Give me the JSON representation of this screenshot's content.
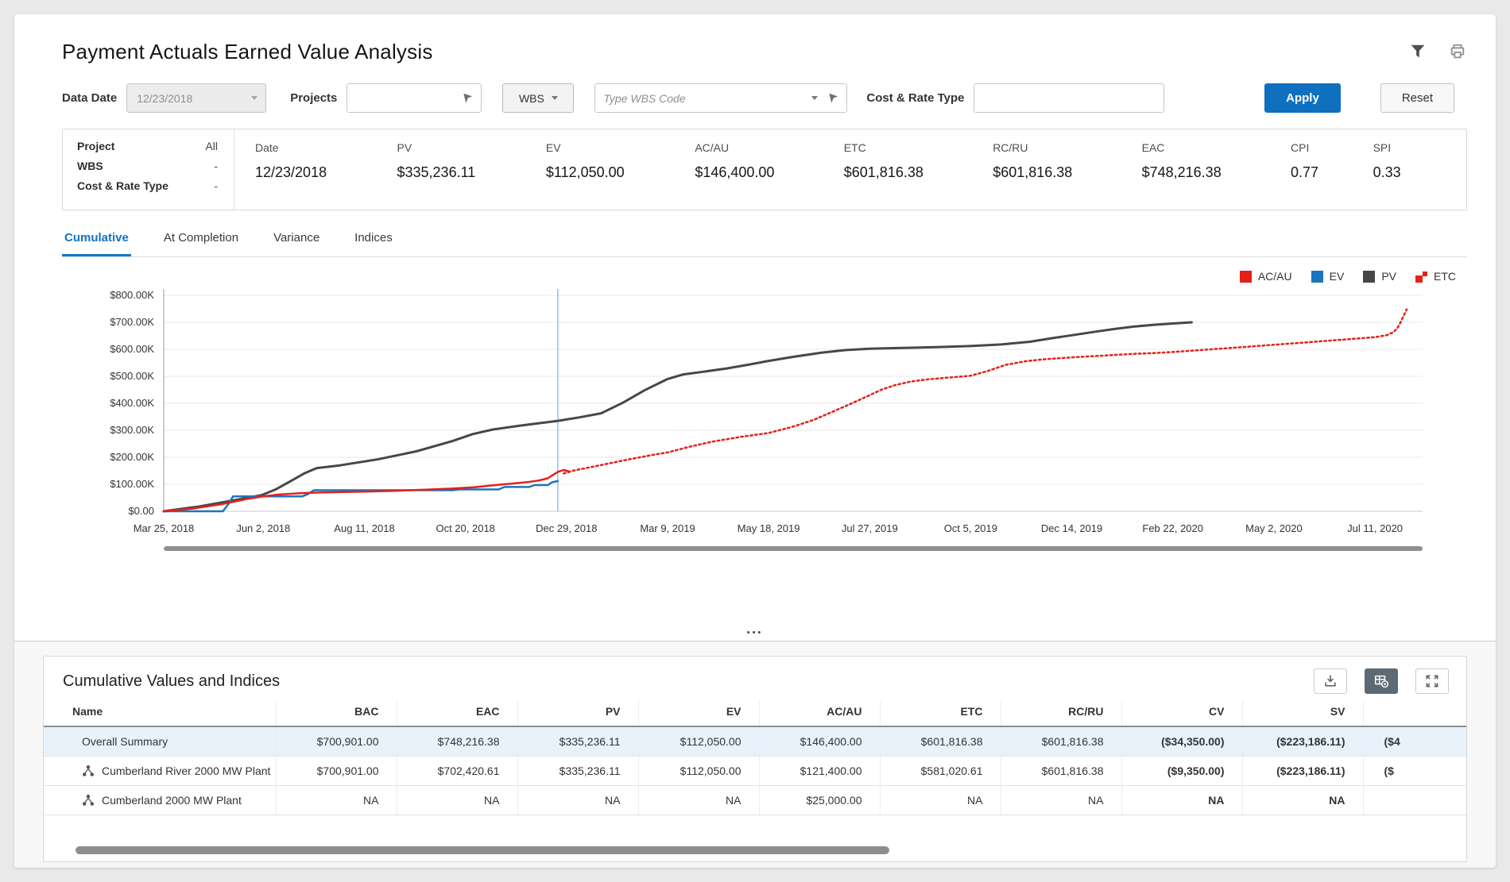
{
  "page": {
    "title": "Payment Actuals Earned Value Analysis"
  },
  "icons": {
    "header": [
      "filter-funnel",
      "printer"
    ],
    "inputs": [
      "chevron-down",
      "picker-arrow"
    ],
    "table_toolbar": [
      "download",
      "table-settings",
      "expand"
    ],
    "table_row": "wbs-node"
  },
  "filters": {
    "data_date": {
      "label": "Data Date",
      "value": "12/23/2018",
      "disabled": true
    },
    "projects": {
      "label": "Projects",
      "value": ""
    },
    "wbs_button": {
      "label": "WBS"
    },
    "wbs_code": {
      "placeholder": "Type WBS Code",
      "value": ""
    },
    "cost_rate_type": {
      "label": "Cost & Rate Type",
      "value": ""
    },
    "apply_label": "Apply",
    "reset_label": "Reset"
  },
  "summary": {
    "scope": [
      {
        "label": "Project",
        "value": "All"
      },
      {
        "label": "WBS",
        "value": "-"
      },
      {
        "label": "Cost & Rate Type",
        "value": "-"
      }
    ],
    "metrics": [
      {
        "label": "Date",
        "value": "12/23/2018"
      },
      {
        "label": "PV",
        "value": "$335,236.11"
      },
      {
        "label": "EV",
        "value": "$112,050.00"
      },
      {
        "label": "AC/AU",
        "value": "$146,400.00"
      },
      {
        "label": "ETC",
        "value": "$601,816.38"
      },
      {
        "label": "RC/RU",
        "value": "$601,816.38"
      },
      {
        "label": "EAC",
        "value": "$748,216.38"
      },
      {
        "label": "CPI",
        "value": "0.77"
      },
      {
        "label": "SPI",
        "value": "0.33"
      }
    ]
  },
  "tabs": {
    "items": [
      {
        "label": "Cumulative",
        "active": true
      },
      {
        "label": "At Completion",
        "active": false
      },
      {
        "label": "Variance",
        "active": false
      },
      {
        "label": "Indices",
        "active": false
      }
    ]
  },
  "chart_data": {
    "type": "line",
    "title": "",
    "xlabel": "",
    "ylabel": "",
    "units": "USD thousands",
    "ylim": [
      0,
      800
    ],
    "grid": true,
    "legend_position": "top-right",
    "y_ticks": [
      "$800.00K",
      "$700.00K",
      "$600.00K",
      "$500.00K",
      "$400.00K",
      "$300.00K",
      "$200.00K",
      "$100.00K",
      "$0.00"
    ],
    "x_domain": [
      0,
      872
    ],
    "x_ticks": [
      {
        "day": 0,
        "label": "Mar 25, 2018"
      },
      {
        "day": 69,
        "label": "Jun 2, 2018"
      },
      {
        "day": 139,
        "label": "Aug 11, 2018"
      },
      {
        "day": 209,
        "label": "Oct 20, 2018"
      },
      {
        "day": 279,
        "label": "Dec 29, 2018"
      },
      {
        "day": 349,
        "label": "Mar 9, 2019"
      },
      {
        "day": 419,
        "label": "May 18, 2019"
      },
      {
        "day": 489,
        "label": "Jul 27, 2019"
      },
      {
        "day": 559,
        "label": "Oct 5, 2019"
      },
      {
        "day": 629,
        "label": "Dec 14, 2019"
      },
      {
        "day": 699,
        "label": "Feb 22, 2020"
      },
      {
        "day": 769,
        "label": "May 2, 2020"
      },
      {
        "day": 839,
        "label": "Jul 11, 2020"
      }
    ],
    "data_date_day": 273,
    "data_date_color": "#8fc5e5",
    "legend": [
      {
        "name": "AC/AU",
        "color": "#e32119",
        "swatch": "solid"
      },
      {
        "name": "EV",
        "color": "#1b74c0",
        "swatch": "solid"
      },
      {
        "name": "PV",
        "color": "#474747",
        "swatch": "solid"
      },
      {
        "name": "ETC",
        "color": "#e32119",
        "swatch": "split"
      }
    ],
    "series": [
      {
        "name": "PV",
        "color": "#474747",
        "dash": "solid",
        "width": 3,
        "points": [
          [
            0,
            0
          ],
          [
            25,
            18
          ],
          [
            50,
            42
          ],
          [
            68,
            60
          ],
          [
            78,
            82
          ],
          [
            88,
            112
          ],
          [
            98,
            142
          ],
          [
            106,
            160
          ],
          [
            122,
            170
          ],
          [
            148,
            192
          ],
          [
            175,
            222
          ],
          [
            200,
            260
          ],
          [
            214,
            286
          ],
          [
            228,
            303
          ],
          [
            248,
            318
          ],
          [
            273,
            335
          ],
          [
            288,
            348
          ],
          [
            303,
            363
          ],
          [
            318,
            402
          ],
          [
            333,
            448
          ],
          [
            349,
            490
          ],
          [
            360,
            507
          ],
          [
            374,
            517
          ],
          [
            390,
            529
          ],
          [
            405,
            543
          ],
          [
            419,
            557
          ],
          [
            436,
            572
          ],
          [
            455,
            587
          ],
          [
            472,
            597
          ],
          [
            489,
            602
          ],
          [
            512,
            605
          ],
          [
            535,
            608
          ],
          [
            559,
            612
          ],
          [
            580,
            618
          ],
          [
            600,
            628
          ],
          [
            614,
            640
          ],
          [
            629,
            652
          ],
          [
            644,
            664
          ],
          [
            658,
            675
          ],
          [
            672,
            684
          ],
          [
            686,
            691
          ],
          [
            700,
            696
          ],
          [
            712,
            700
          ]
        ]
      },
      {
        "name": "EV",
        "color": "#1b74c0",
        "dash": "solid",
        "width": 2.5,
        "points": [
          [
            0,
            0
          ],
          [
            41,
            0
          ],
          [
            45,
            28
          ],
          [
            48,
            55
          ],
          [
            96,
            55
          ],
          [
            100,
            64
          ],
          [
            104,
            78
          ],
          [
            200,
            78
          ],
          [
            205,
            81
          ],
          [
            232,
            81
          ],
          [
            236,
            90
          ],
          [
            253,
            90
          ],
          [
            257,
            97
          ],
          [
            266,
            97
          ],
          [
            269,
            107
          ],
          [
            273,
            112
          ]
        ]
      },
      {
        "name": "AC/AU",
        "color": "#e32119",
        "dash": "solid",
        "width": 2.5,
        "points": [
          [
            0,
            0
          ],
          [
            20,
            10
          ],
          [
            40,
            26
          ],
          [
            58,
            46
          ],
          [
            69,
            55
          ],
          [
            80,
            62
          ],
          [
            95,
            67
          ],
          [
            110,
            70
          ],
          [
            139,
            73
          ],
          [
            160,
            76
          ],
          [
            182,
            80
          ],
          [
            200,
            84
          ],
          [
            215,
            89
          ],
          [
            230,
            97
          ],
          [
            242,
            103
          ],
          [
            252,
            108
          ],
          [
            260,
            114
          ],
          [
            266,
            122
          ],
          [
            270,
            136
          ],
          [
            273,
            146
          ],
          [
            277,
            153
          ],
          [
            281,
            147
          ]
        ]
      },
      {
        "name": "ETC",
        "color": "#e32119",
        "dash": "dotted",
        "width": 2.5,
        "points": [
          [
            277,
            140
          ],
          [
            285,
            152
          ],
          [
            300,
            168
          ],
          [
            320,
            190
          ],
          [
            340,
            210
          ],
          [
            349,
            218
          ],
          [
            365,
            240
          ],
          [
            380,
            258
          ],
          [
            400,
            276
          ],
          [
            419,
            290
          ],
          [
            435,
            312
          ],
          [
            450,
            338
          ],
          [
            463,
            368
          ],
          [
            475,
            396
          ],
          [
            487,
            425
          ],
          [
            497,
            450
          ],
          [
            507,
            468
          ],
          [
            517,
            480
          ],
          [
            528,
            488
          ],
          [
            543,
            495
          ],
          [
            559,
            502
          ],
          [
            571,
            520
          ],
          [
            583,
            542
          ],
          [
            597,
            556
          ],
          [
            612,
            564
          ],
          [
            629,
            570
          ],
          [
            648,
            576
          ],
          [
            668,
            582
          ],
          [
            685,
            586
          ],
          [
            699,
            590
          ],
          [
            715,
            596
          ],
          [
            731,
            602
          ],
          [
            747,
            608
          ],
          [
            762,
            614
          ],
          [
            777,
            620
          ],
          [
            792,
            626
          ],
          [
            807,
            632
          ],
          [
            822,
            638
          ],
          [
            839,
            645
          ],
          [
            847,
            652
          ],
          [
            852,
            664
          ],
          [
            855,
            682
          ],
          [
            857,
            703
          ],
          [
            859,
            726
          ],
          [
            861,
            748
          ]
        ]
      }
    ]
  },
  "splitter": {
    "dots": "•••"
  },
  "table": {
    "title": "Cumulative Values and Indices",
    "columns": [
      "Name",
      "BAC",
      "EAC",
      "PV",
      "EV",
      "AC/AU",
      "ETC",
      "RC/RU",
      "CV",
      "SV",
      ""
    ],
    "bold_columns": [
      "CV",
      "SV"
    ],
    "rows": [
      {
        "name": "Overall Summary",
        "has_icon": false,
        "highlighted": true,
        "values": [
          "$700,901.00",
          "$748,216.38",
          "$335,236.11",
          "$112,050.00",
          "$146,400.00",
          "$601,816.38",
          "$601,816.38",
          "($34,350.00)",
          "($223,186.11)",
          "($4"
        ]
      },
      {
        "name": "Cumberland River 2000 MW Plant",
        "has_icon": true,
        "highlighted": false,
        "values": [
          "$700,901.00",
          "$702,420.61",
          "$335,236.11",
          "$112,050.00",
          "$121,400.00",
          "$581,020.61",
          "$601,816.38",
          "($9,350.00)",
          "($223,186.11)",
          "($"
        ]
      },
      {
        "name": "Cumberland 2000 MW Plant",
        "has_icon": true,
        "highlighted": false,
        "values": [
          "NA",
          "NA",
          "NA",
          "NA",
          "$25,000.00",
          "NA",
          "NA",
          "NA",
          "NA",
          ""
        ]
      }
    ]
  }
}
